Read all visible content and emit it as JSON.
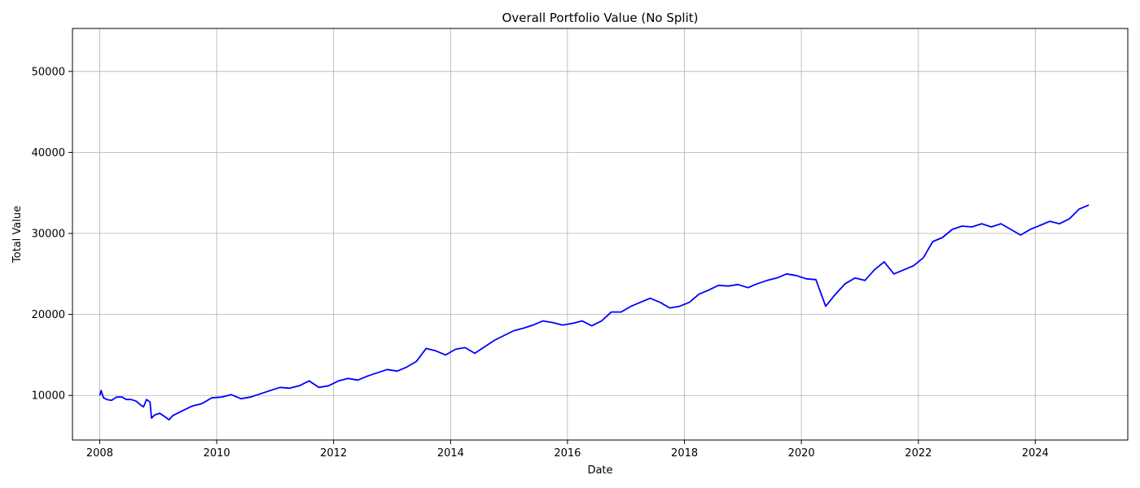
{
  "chart_data": {
    "type": "line",
    "title": "Overall Portfolio Value (No Split)",
    "xlabel": "Date",
    "ylabel": "Total Value",
    "grid": true,
    "legend": "none",
    "x_ticks": [
      {
        "label": "2008",
        "value": "2008-01-01"
      },
      {
        "label": "2010",
        "value": "2010-01-01"
      },
      {
        "label": "2012",
        "value": "2012-01-01"
      },
      {
        "label": "2014",
        "value": "2014-01-01"
      },
      {
        "label": "2016",
        "value": "2016-01-01"
      },
      {
        "label": "2018",
        "value": "2018-01-01"
      },
      {
        "label": "2020",
        "value": "2020-01-01"
      },
      {
        "label": "2022",
        "value": "2022-01-01"
      },
      {
        "label": "2024",
        "value": "2024-01-01"
      }
    ],
    "y_ticks": [
      {
        "label": "10000",
        "value": 10000
      },
      {
        "label": "20000",
        "value": 20000
      },
      {
        "label": "30000",
        "value": 30000
      },
      {
        "label": "40000",
        "value": 40000
      },
      {
        "label": "50000",
        "value": 50000
      }
    ],
    "xlim": [
      "2007-07-15",
      "2025-08-01"
    ],
    "ylim": [
      4500,
      55300
    ],
    "series": [
      {
        "color": "#0000ff",
        "points": [
          [
            "2008-01-02",
            10000
          ],
          [
            "2008-01-10",
            10600
          ],
          [
            "2008-01-25",
            9700
          ],
          [
            "2008-02-15",
            9500
          ],
          [
            "2008-03-15",
            9400
          ],
          [
            "2008-04-15",
            9800
          ],
          [
            "2008-05-20",
            9800
          ],
          [
            "2008-06-15",
            9500
          ],
          [
            "2008-07-15",
            9500
          ],
          [
            "2008-08-15",
            9300
          ],
          [
            "2008-09-15",
            8800
          ],
          [
            "2008-10-01",
            8600
          ],
          [
            "2008-10-20",
            9500
          ],
          [
            "2008-11-10",
            9200
          ],
          [
            "2008-11-20",
            7200
          ],
          [
            "2008-12-10",
            7600
          ],
          [
            "2009-01-10",
            7800
          ],
          [
            "2009-02-10",
            7400
          ],
          [
            "2009-03-09",
            7000
          ],
          [
            "2009-04-01",
            7500
          ],
          [
            "2009-05-01",
            7800
          ],
          [
            "2009-06-01",
            8100
          ],
          [
            "2009-07-01",
            8400
          ],
          [
            "2009-08-01",
            8700
          ],
          [
            "2009-10-01",
            9000
          ],
          [
            "2009-12-01",
            9700
          ],
          [
            "2010-02-01",
            9800
          ],
          [
            "2010-04-01",
            10100
          ],
          [
            "2010-06-01",
            9600
          ],
          [
            "2010-08-01",
            9800
          ],
          [
            "2010-10-01",
            10200
          ],
          [
            "2010-12-01",
            10600
          ],
          [
            "2011-02-01",
            11000
          ],
          [
            "2011-04-01",
            10900
          ],
          [
            "2011-06-01",
            11200
          ],
          [
            "2011-08-01",
            11800
          ],
          [
            "2011-10-01",
            11000
          ],
          [
            "2011-12-01",
            11200
          ],
          [
            "2012-02-01",
            11800
          ],
          [
            "2012-04-01",
            12100
          ],
          [
            "2012-06-01",
            11900
          ],
          [
            "2012-08-01",
            12400
          ],
          [
            "2012-10-01",
            12800
          ],
          [
            "2012-12-01",
            13200
          ],
          [
            "2013-02-01",
            13000
          ],
          [
            "2013-04-01",
            13500
          ],
          [
            "2013-06-01",
            14200
          ],
          [
            "2013-08-01",
            15800
          ],
          [
            "2013-10-01",
            15500
          ],
          [
            "2013-12-01",
            15000
          ],
          [
            "2014-02-01",
            15700
          ],
          [
            "2014-04-01",
            15900
          ],
          [
            "2014-06-01",
            15200
          ],
          [
            "2014-08-01",
            16000
          ],
          [
            "2014-10-01",
            16800
          ],
          [
            "2014-12-01",
            17400
          ],
          [
            "2015-02-01",
            18000
          ],
          [
            "2015-04-01",
            18300
          ],
          [
            "2015-06-01",
            18700
          ],
          [
            "2015-08-01",
            19200
          ],
          [
            "2015-10-01",
            19000
          ],
          [
            "2015-12-01",
            18700
          ],
          [
            "2016-02-01",
            18900
          ],
          [
            "2016-04-01",
            19200
          ],
          [
            "2016-06-01",
            18600
          ],
          [
            "2016-08-01",
            19200
          ],
          [
            "2016-10-01",
            20300
          ],
          [
            "2016-12-01",
            20300
          ],
          [
            "2017-02-01",
            21000
          ],
          [
            "2017-04-01",
            21500
          ],
          [
            "2017-06-01",
            22000
          ],
          [
            "2017-08-01",
            21500
          ],
          [
            "2017-10-01",
            20800
          ],
          [
            "2017-12-01",
            21000
          ],
          [
            "2018-02-01",
            21500
          ],
          [
            "2018-04-01",
            22500
          ],
          [
            "2018-06-01",
            23000
          ],
          [
            "2018-08-01",
            23600
          ],
          [
            "2018-10-01",
            23500
          ],
          [
            "2018-12-01",
            23700
          ],
          [
            "2019-02-01",
            23300
          ],
          [
            "2019-04-01",
            23800
          ],
          [
            "2019-06-01",
            24200
          ],
          [
            "2019-08-01",
            24500
          ],
          [
            "2019-10-01",
            25000
          ],
          [
            "2019-12-01",
            24800
          ],
          [
            "2020-02-01",
            24400
          ],
          [
            "2020-04-01",
            24300
          ],
          [
            "2020-06-01",
            21000
          ],
          [
            "2020-08-01",
            22500
          ],
          [
            "2020-10-01",
            23800
          ],
          [
            "2020-12-01",
            24500
          ],
          [
            "2021-02-01",
            24200
          ],
          [
            "2021-04-01",
            25500
          ],
          [
            "2021-06-01",
            26500
          ],
          [
            "2021-08-01",
            25000
          ],
          [
            "2021-10-01",
            25500
          ],
          [
            "2021-12-01",
            26000
          ],
          [
            "2022-02-01",
            27000
          ],
          [
            "2022-04-01",
            29000
          ],
          [
            "2022-06-01",
            29500
          ],
          [
            "2022-08-01",
            30500
          ],
          [
            "2022-10-01",
            30900
          ],
          [
            "2022-12-01",
            30800
          ],
          [
            "2023-02-01",
            31200
          ],
          [
            "2023-04-01",
            30800
          ],
          [
            "2023-06-01",
            31200
          ],
          [
            "2023-08-01",
            30500
          ],
          [
            "2023-10-01",
            29800
          ],
          [
            "2023-12-01",
            30500
          ],
          [
            "2024-02-01",
            31000
          ],
          [
            "2024-04-01",
            31500
          ],
          [
            "2024-06-01",
            31200
          ],
          [
            "2024-08-01",
            31800
          ],
          [
            "2024-10-01",
            33000
          ],
          [
            "2024-12-01",
            33500
          ]
        ]
      }
    ]
  }
}
